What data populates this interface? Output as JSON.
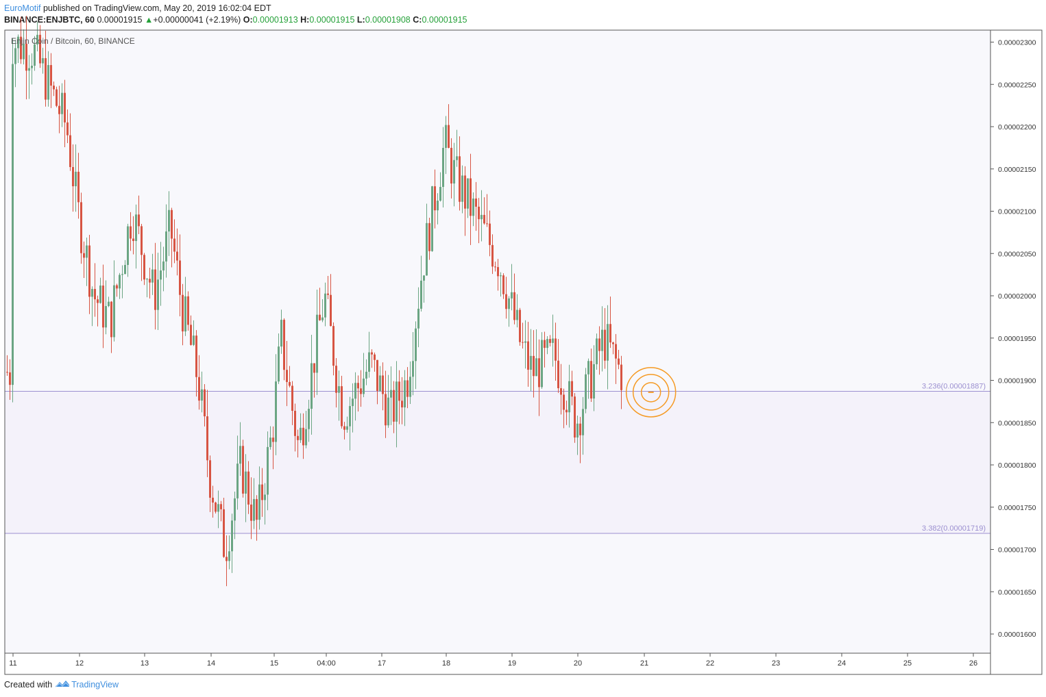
{
  "header": {
    "author": "EuroMotif",
    "published_text": "published on TradingView.com, May 20, 2019 16:02:04 EDT",
    "symbol": "BINANCE:ENJBTC, 60",
    "last": "0.00001915",
    "change": "+0.00000041 (+2.19%)",
    "o_label": "O:",
    "o_value": "0.00001913",
    "h_label": "H:",
    "h_value": "0.00001915",
    "l_label": "L:",
    "l_value": "0.00001908",
    "c_label": "C:",
    "c_value": "0.00001915"
  },
  "footer": {
    "created_with": "Created with",
    "brand": "TradingView"
  },
  "colors": {
    "up": "#6ba583",
    "down": "#d75442",
    "fib_line": "#9b8fd0",
    "fib_fill": "#f4f2fa",
    "fib_text": "#9b8fd0",
    "circle": "#f59a23",
    "plot_bg": "#f8f8fc",
    "axis": "#555555"
  },
  "chart_data": {
    "type": "candlestick",
    "title": "Enjin Coin / Bitcoin, 60, BINANCE",
    "ylim": [
      1.58e-05,
      2.31e-05
    ],
    "y_ticks": [
      "0.00002300",
      "0.00002250",
      "0.00002200",
      "0.00002150",
      "0.00002100",
      "0.00002050",
      "0.00002000",
      "0.00001950",
      "0.00001900",
      "0.00001850",
      "0.00001800",
      "0.00001750",
      "0.00001700",
      "0.00001650",
      "0.00001600"
    ],
    "x_ticks": [
      "11",
      "12",
      "13",
      "14",
      "15",
      "04:00",
      "17",
      "18",
      "19",
      "20",
      "21",
      "22",
      "23",
      "24",
      "25",
      "26"
    ],
    "fib_levels": [
      {
        "ratio": "3.236",
        "price": 1.887e-05,
        "label": "3.236(0.00001887)"
      },
      {
        "ratio": "3.382",
        "price": 1.719e-05,
        "label": "3.382(0.00001719)"
      }
    ],
    "anchors": [
      {
        "x": "11",
        "y": 2.3e-05
      },
      {
        "x": "11 08:00",
        "y": 2.29e-05
      },
      {
        "x": "11 20:00",
        "y": 2.2e-05
      },
      {
        "x": "12 00:00",
        "y": 2.1e-05
      },
      {
        "x": "12 06:00",
        "y": 2e-05
      },
      {
        "x": "12 12:00",
        "y": 1.97e-05
      },
      {
        "x": "12 20:00",
        "y": 2.1e-05
      },
      {
        "x": "13 04:00",
        "y": 2e-05
      },
      {
        "x": "13 10:00",
        "y": 2.08e-05
      },
      {
        "x": "13 14:00",
        "y": 1.99e-05
      },
      {
        "x": "13 20:00",
        "y": 1.9e-05
      },
      {
        "x": "14 00:00",
        "y": 1.79e-05
      },
      {
        "x": "14 06:00",
        "y": 1.7e-05
      },
      {
        "x": "14 12:00",
        "y": 1.8e-05
      },
      {
        "x": "14 18:00",
        "y": 1.73e-05
      },
      {
        "x": "15 00:00",
        "y": 1.84e-05
      },
      {
        "x": "15 04:00",
        "y": 1.95e-05
      },
      {
        "x": "15 12:00",
        "y": 1.82e-05
      },
      {
        "x": "16 00:00",
        "y": 2e-05
      },
      {
        "x": "16 08:00",
        "y": 1.86e-05
      },
      {
        "x": "16 20:00",
        "y": 1.92e-05
      },
      {
        "x": "17 04:00",
        "y": 1.86e-05
      },
      {
        "x": "17 10:00",
        "y": 1.9e-05
      },
      {
        "x": "17 16:00",
        "y": 2.04e-05
      },
      {
        "x": "18 00:00",
        "y": 2.18e-05
      },
      {
        "x": "18 04:00",
        "y": 2.14e-05
      },
      {
        "x": "18 20:00",
        "y": 2.04e-05
      },
      {
        "x": "19 04:00",
        "y": 1.94e-05
      },
      {
        "x": "19 08:00",
        "y": 1.91e-05
      },
      {
        "x": "19 16:00",
        "y": 1.93e-05
      },
      {
        "x": "20 00:00",
        "y": 1.85e-05
      },
      {
        "x": "20 06:00",
        "y": 1.91e-05
      },
      {
        "x": "20 10:00",
        "y": 1.95e-05
      },
      {
        "x": "20 16:00",
        "y": 1.91e-05
      }
    ],
    "marker": {
      "x": "20 16:00",
      "y": 1.89e-05
    }
  }
}
